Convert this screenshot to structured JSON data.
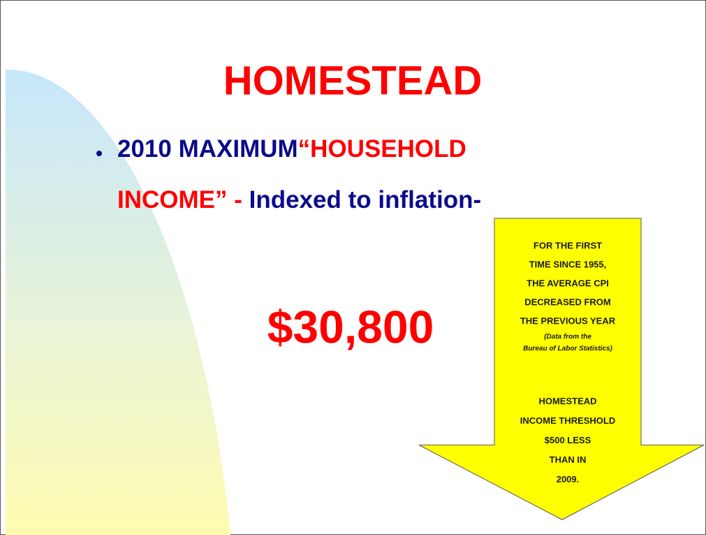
{
  "title": "HOMESTEAD",
  "bullet": {
    "parts": [
      "2010 MAXIMUM",
      "“HOUSEHOLD",
      "INCOME” -",
      "Indexed to inflation-"
    ]
  },
  "amount": "$30,800",
  "callout": {
    "lines": [
      "FOR THE FIRST",
      "TIME SINCE 1955,",
      "THE AVERAGE CPI",
      "DECREASED FROM",
      "THE PREVIOUS YEAR"
    ],
    "note": [
      "(Data from the",
      "Bureau of Labor Statistics)"
    ],
    "lines2": [
      "HOMESTEAD",
      "INCOME THRESHOLD",
      "$500 LESS",
      "THAN IN",
      "2009."
    ]
  }
}
